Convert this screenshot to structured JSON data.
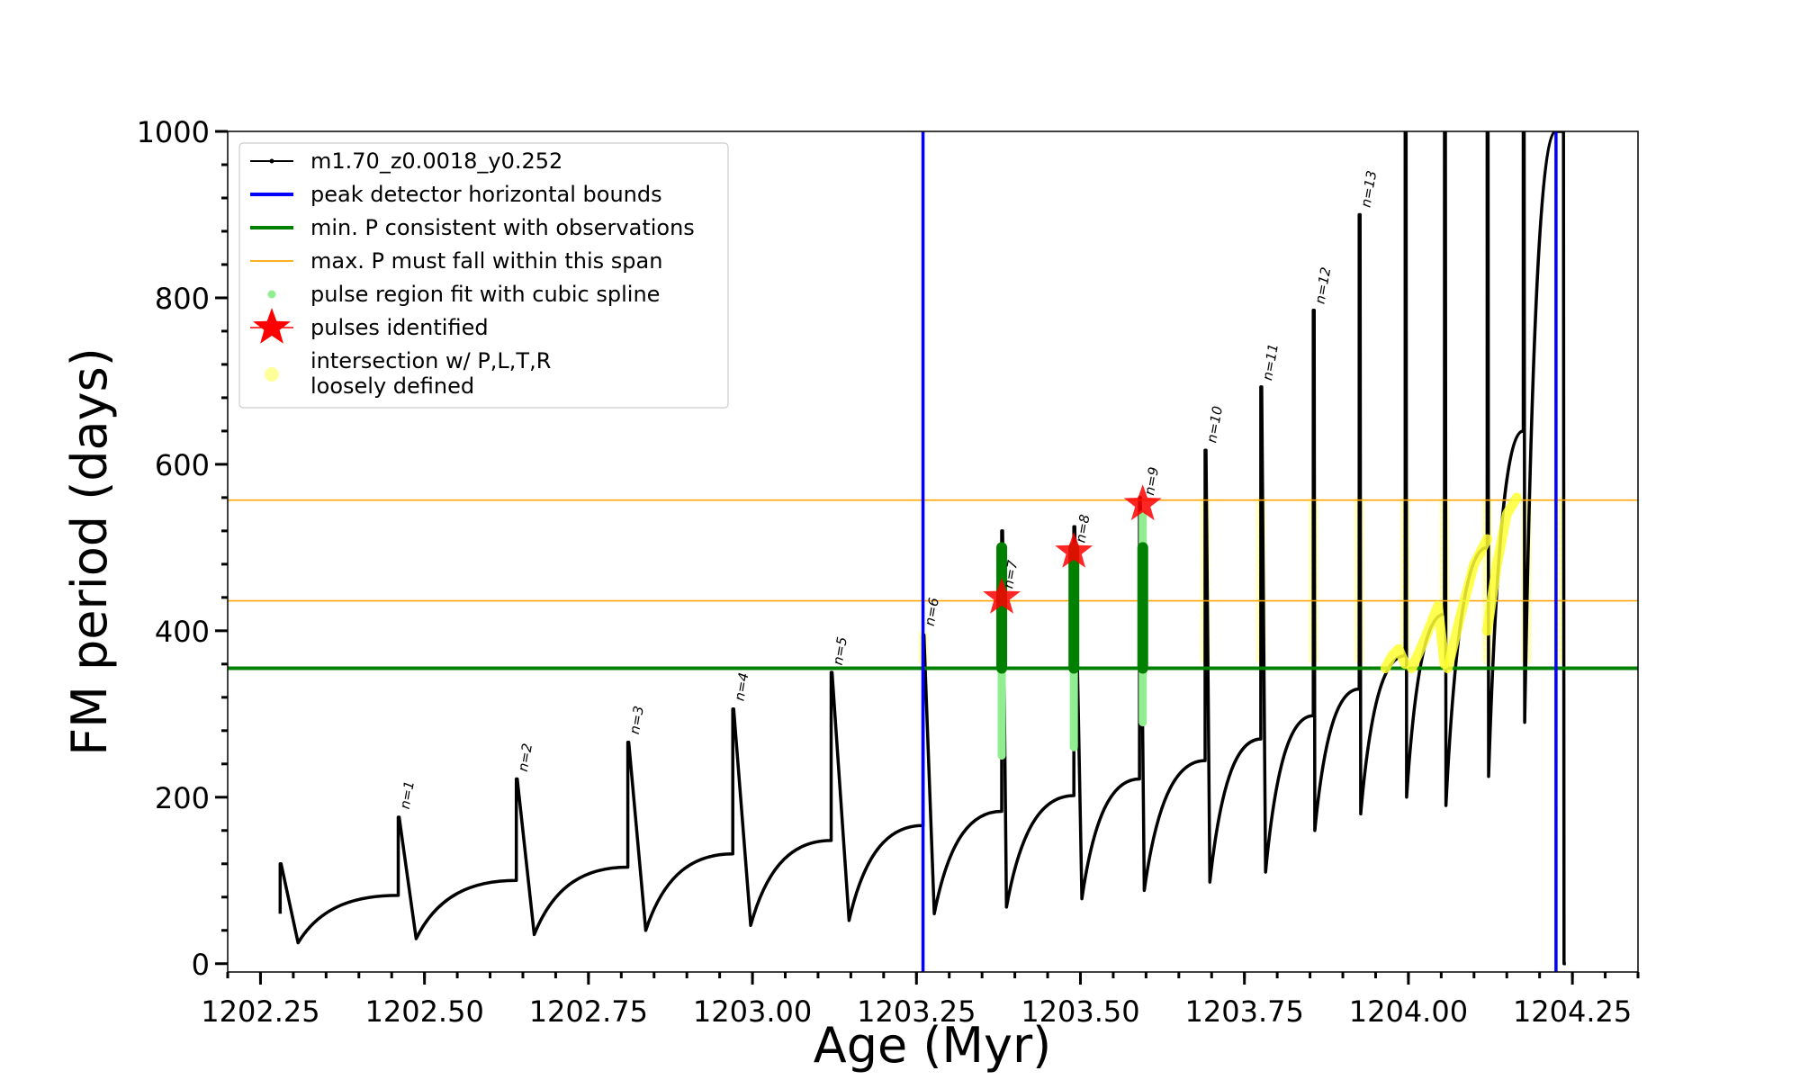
{
  "chart_data": {
    "type": "line",
    "xlabel": "Age (Myr)",
    "ylabel": "FM period (days)",
    "xlim": [
      1202.2,
      1204.35
    ],
    "ylim": [
      -10,
      1000
    ],
    "x_ticks": [
      1202.25,
      1202.5,
      1202.75,
      1203.0,
      1203.25,
      1203.5,
      1203.75,
      1204.0,
      1204.25
    ],
    "x_tick_labels": [
      "1202.25",
      "1202.50",
      "1202.75",
      "1203.00",
      "1203.25",
      "1203.50",
      "1203.75",
      "1204.00",
      "1204.25"
    ],
    "y_ticks": [
      0,
      200,
      400,
      600,
      800,
      1000
    ],
    "y_tick_labels": [
      "0",
      "200",
      "400",
      "600",
      "800",
      "1000"
    ],
    "grid": false,
    "legend_position": "top-left",
    "legend": [
      {
        "label": "m1.70_z0.0018_y0.252",
        "style": "line-marker",
        "color": "#000000"
      },
      {
        "label": "peak detector horizontal bounds",
        "style": "line",
        "color": "#0000ff"
      },
      {
        "label": "min. P consistent with observations",
        "style": "line",
        "color": "#008000"
      },
      {
        "label": "max. P must fall within this span",
        "style": "thin-line",
        "color": "#ffa500"
      },
      {
        "label": "pulse region fit with cubic spline",
        "style": "dot",
        "color": "#90ee90"
      },
      {
        "label": "pulses identified",
        "style": "star",
        "color": "#ff0000"
      },
      {
        "label": "intersection w/ P,L,T,R",
        "label2": "loosely defined",
        "style": "circle",
        "color": "#ffff99"
      }
    ],
    "series": [
      {
        "name": "m1.70_z0.0018_y0.252",
        "color": "#000000",
        "pulses": [
          {
            "start": 1202.28,
            "base": 60,
            "peak": 120,
            "min_x": 1202.31,
            "min_y": 25,
            "end_x": 1202.46,
            "end_y": 82
          },
          {
            "start": 1202.46,
            "base": 82,
            "peak": 176,
            "min_x": 1202.49,
            "min_y": 30,
            "end_x": 1202.64,
            "end_y": 100
          },
          {
            "start": 1202.64,
            "base": 100,
            "peak": 222,
            "min_x": 1202.67,
            "min_y": 35,
            "end_x": 1202.81,
            "end_y": 116
          },
          {
            "start": 1202.81,
            "base": 116,
            "peak": 266,
            "min_x": 1202.84,
            "min_y": 40,
            "end_x": 1202.97,
            "end_y": 132
          },
          {
            "start": 1202.97,
            "base": 132,
            "peak": 306,
            "min_x": 1203.0,
            "min_y": 46,
            "end_x": 1203.12,
            "end_y": 148
          },
          {
            "start": 1203.12,
            "base": 148,
            "peak": 350,
            "min_x": 1203.15,
            "min_y": 52,
            "end_x": 1203.26,
            "end_y": 166
          },
          {
            "start": 1203.26,
            "base": 166,
            "peak": 395,
            "min_x": 1203.28,
            "min_y": 60,
            "end_x": 1203.38,
            "end_y": 183
          },
          {
            "start": 1203.38,
            "base": 183,
            "peak": 520,
            "min_x": 1203.39,
            "min_y": 68,
            "end_x": 1203.49,
            "end_y": 202
          },
          {
            "start": 1203.49,
            "base": 202,
            "peak": 525,
            "min_x": 1203.505,
            "min_y": 78,
            "end_x": 1203.59,
            "end_y": 222
          },
          {
            "start": 1203.59,
            "base": 222,
            "peak": 560,
            "min_x": 1203.6,
            "min_y": 88,
            "end_x": 1203.69,
            "end_y": 244
          },
          {
            "start": 1203.69,
            "base": 244,
            "peak": 617,
            "min_x": 1203.7,
            "min_y": 98,
            "end_x": 1203.775,
            "end_y": 270
          },
          {
            "start": 1203.775,
            "base": 270,
            "peak": 693,
            "min_x": 1203.785,
            "min_y": 110,
            "end_x": 1203.855,
            "end_y": 298
          },
          {
            "start": 1203.855,
            "base": 298,
            "peak": 785,
            "min_x": 1203.86,
            "min_y": 160,
            "end_x": 1203.925,
            "end_y": 330
          },
          {
            "start": 1203.925,
            "base": 330,
            "peak": 900,
            "min_x": 1203.93,
            "min_y": 180,
            "end_x": 1203.995,
            "end_y": 370
          },
          {
            "start": 1203.995,
            "base": 370,
            "peak": 1000,
            "min_x": 1204.0,
            "min_y": 200,
            "end_x": 1204.055,
            "end_y": 420
          },
          {
            "start": 1204.055,
            "base": 420,
            "peak": 1000,
            "min_x": 1204.06,
            "min_y": 190,
            "end_x": 1204.12,
            "end_y": 500
          },
          {
            "start": 1204.12,
            "base": 500,
            "peak": 1000,
            "min_x": 1204.125,
            "min_y": 225,
            "end_x": 1204.175,
            "end_y": 640
          },
          {
            "start": 1204.175,
            "base": 640,
            "peak": 1000,
            "min_x": 1204.18,
            "min_y": 290,
            "end_x": 1204.225,
            "end_y": 1000
          },
          {
            "start": 1204.235,
            "base": 1000,
            "peak": 1000,
            "min_x": 1204.24,
            "min_y": 0,
            "end_x": 1204.24,
            "end_y": 0
          }
        ]
      },
      {
        "name": "peak detector horizontal bounds",
        "color": "#0000ff",
        "x": [
          1203.26,
          1204.225
        ]
      },
      {
        "name": "min. P consistent with observations",
        "color": "#008000",
        "y": 355
      },
      {
        "name": "max. P must fall within this span",
        "color": "#ffa500",
        "y": [
          436,
          557
        ]
      },
      {
        "name": "pulse region fit with cubic spline",
        "color": "#90ee90",
        "bands": [
          {
            "x": 1203.38,
            "y": [
              250,
              500
            ]
          },
          {
            "x": 1203.49,
            "y": [
              260,
              500
            ]
          },
          {
            "x": 1203.595,
            "y": [
              290,
              540
            ]
          }
        ]
      },
      {
        "name": "dark green fit",
        "color": "#008000",
        "bands": [
          {
            "x": 1203.38,
            "y": [
              355,
              500
            ]
          },
          {
            "x": 1203.49,
            "y": [
              355,
              500
            ]
          },
          {
            "x": 1203.595,
            "y": [
              355,
              500
            ]
          }
        ]
      },
      {
        "name": "pulses identified",
        "color": "#ff0000",
        "points": [
          {
            "x": 1203.38,
            "y": 440
          },
          {
            "x": 1203.49,
            "y": 495
          },
          {
            "x": 1203.595,
            "y": 552
          }
        ]
      },
      {
        "name": "intersection w/ P,L,T,R loosely defined",
        "color": "#ffff99",
        "bands": [
          {
            "x": 1203.26,
            "y": [
              360,
              395
            ]
          },
          {
            "x": 1203.69,
            "y": [
              360,
              555
            ]
          },
          {
            "x": 1203.775,
            "y": [
              360,
              555
            ]
          },
          {
            "x": 1203.855,
            "y": [
              360,
              555
            ]
          },
          {
            "x": 1203.925,
            "y": [
              360,
              555
            ]
          },
          {
            "x": 1203.995,
            "y": [
              360,
              555
            ]
          },
          {
            "x": 1204.055,
            "y": [
              360,
              555
            ]
          },
          {
            "x": 1204.12,
            "y": [
              360,
              555
            ]
          },
          {
            "x": 1204.18,
            "y": [
              360,
              555
            ]
          },
          {
            "x": 1204.23,
            "y": [
              360,
              555
            ]
          }
        ],
        "curves": [
          {
            "x": [
              1203.965,
              1203.975,
              1203.985,
              1203.995
            ],
            "y": [
              355,
              370,
              378,
              360
            ]
          },
          {
            "x": [
              1204.005,
              1204.025,
              1204.045,
              1204.055
            ],
            "y": [
              355,
              390,
              430,
              360
            ]
          },
          {
            "x": [
              1204.06,
              1204.08,
              1204.1,
              1204.12
            ],
            "y": [
              355,
              420,
              480,
              510
            ]
          },
          {
            "x": [
              1204.12,
              1204.135,
              1204.15,
              1204.165
            ],
            "y": [
              400,
              480,
              540,
              560
            ]
          }
        ]
      }
    ],
    "annotations": [
      {
        "text": "n=1",
        "x": 1202.46,
        "y": 185
      },
      {
        "text": "n=2",
        "x": 1202.64,
        "y": 230
      },
      {
        "text": "n=3",
        "x": 1202.81,
        "y": 275
      },
      {
        "text": "n=4",
        "x": 1202.97,
        "y": 315
      },
      {
        "text": "n=5",
        "x": 1203.12,
        "y": 358
      },
      {
        "text": "n=6",
        "x": 1203.26,
        "y": 405
      },
      {
        "text": "n=7",
        "x": 1203.38,
        "y": 450
      },
      {
        "text": "n=8",
        "x": 1203.49,
        "y": 505
      },
      {
        "text": "n=9",
        "x": 1203.595,
        "y": 562
      },
      {
        "text": "n=10",
        "x": 1203.69,
        "y": 625
      },
      {
        "text": "n=11",
        "x": 1203.775,
        "y": 700
      },
      {
        "text": "n=12",
        "x": 1203.855,
        "y": 792
      },
      {
        "text": "n=13",
        "x": 1203.925,
        "y": 908
      }
    ]
  }
}
